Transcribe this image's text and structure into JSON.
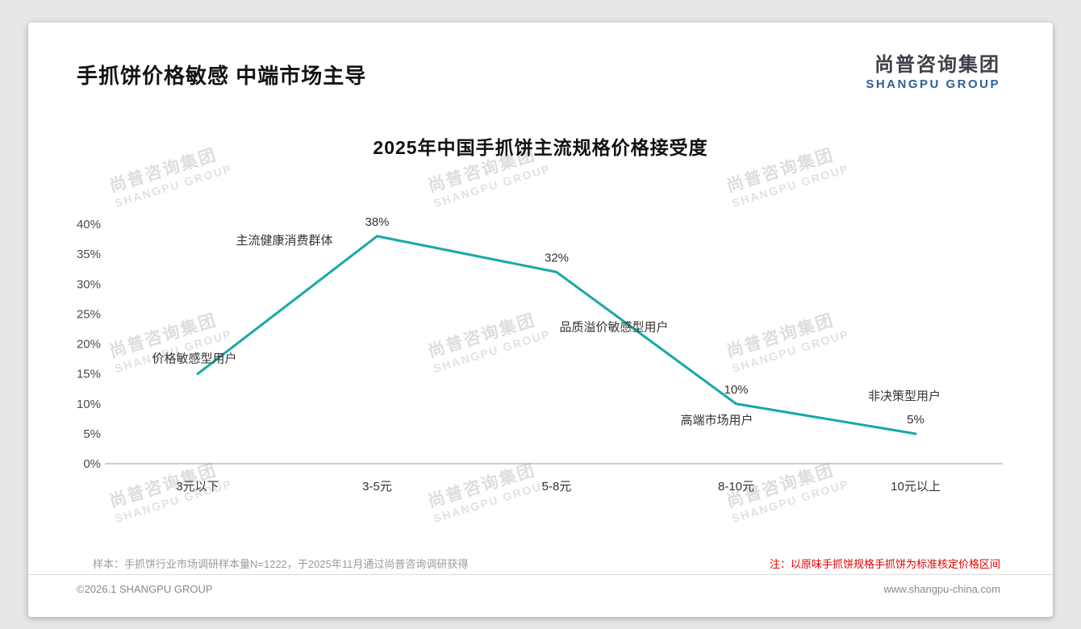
{
  "header": {
    "title": "手抓饼价格敏感 中端市场主导",
    "logo_cn": "尚普咨询集团",
    "logo_en": "SHANGPU GROUP"
  },
  "chart_data": {
    "type": "line",
    "title": "2025年中国手抓饼主流规格价格接受度",
    "categories": [
      "3元以下",
      "3-5元",
      "5-8元",
      "8-10元",
      "10元以上"
    ],
    "values": [
      15,
      38,
      32,
      10,
      5
    ],
    "point_labels": [
      "",
      "38%",
      "32%",
      "10%",
      "5%"
    ],
    "annotations": [
      "价格敏感型用户",
      "主流健康消费群体",
      "品质溢价敏感型用户",
      "高端市场用户",
      "非决策型用户"
    ],
    "xlabel": "",
    "ylabel": "",
    "ylim": [
      0,
      40
    ],
    "yticks": [
      0,
      5,
      10,
      15,
      20,
      25,
      30,
      35,
      40
    ],
    "ytick_suffix": "%",
    "grid": false,
    "legend": "none",
    "line_color": "#17a9a4"
  },
  "watermark": {
    "line1": "尚普咨询集团",
    "line2": "SHANGPU GROUP"
  },
  "footnotes": {
    "sample_note": "样本：手抓饼行业市场调研样本量N=1222，于2025年11月通过尚普咨询调研获得",
    "red_note": "注：以原味手抓饼规格手抓饼为标准核定价格区间"
  },
  "footer": {
    "copyright": "©2026.1 SHANGPU GROUP",
    "website": "www.shangpu-china.com"
  },
  "colors": {
    "accent": "#17a9a4",
    "logo_blue": "#2e6096",
    "note_red": "#e60000"
  }
}
